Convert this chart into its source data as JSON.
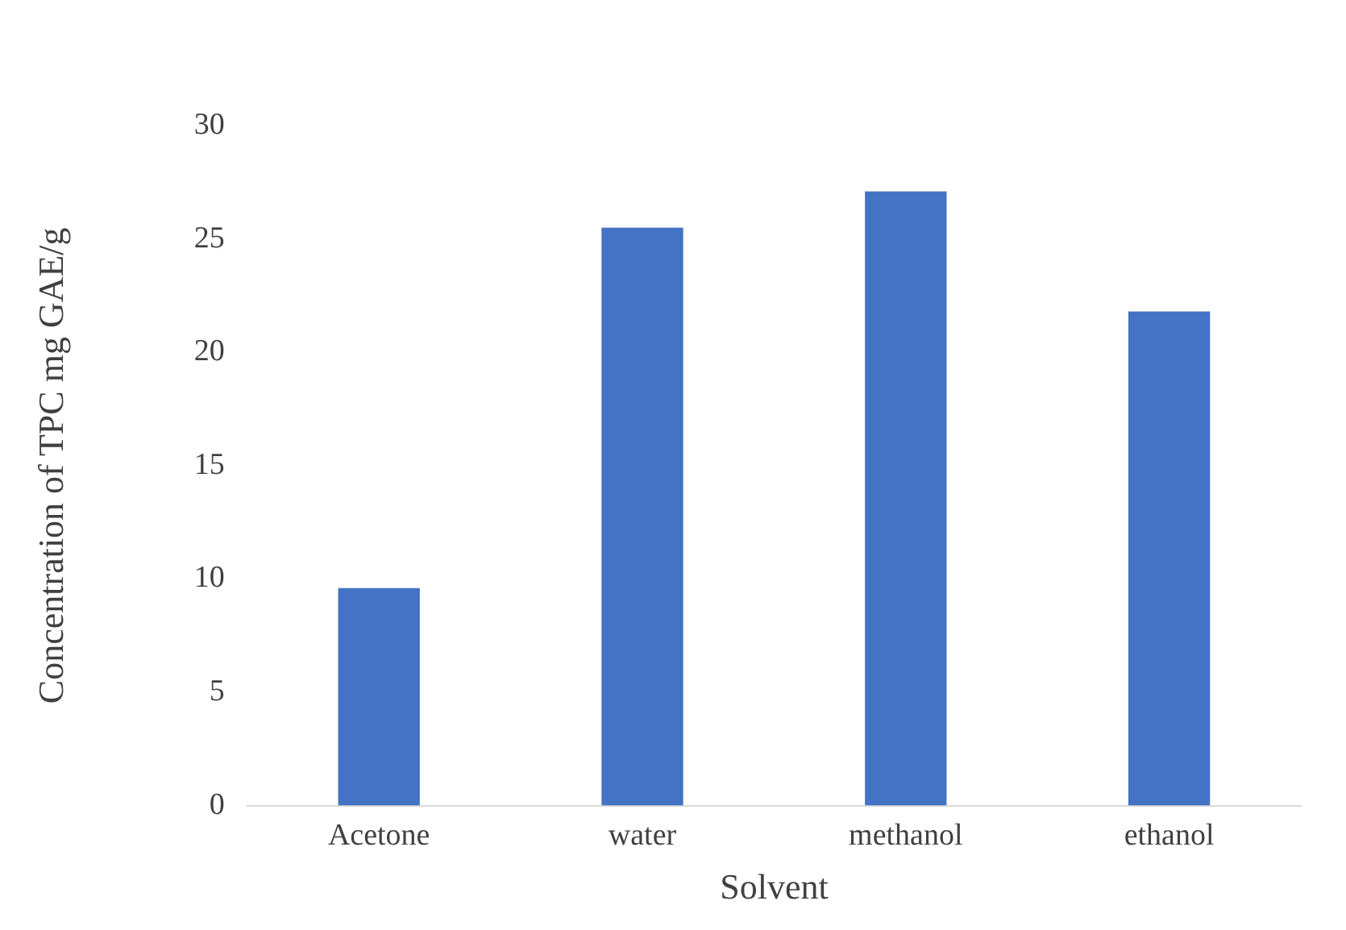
{
  "chart_data": {
    "type": "bar",
    "xlabel": "Solvent",
    "ylabel": "Concentration of TPC mg GAE/g",
    "categories": [
      "Acetone",
      "water",
      "methanol",
      "ethanol"
    ],
    "values": [
      9.6,
      25.5,
      27.1,
      21.8
    ],
    "color": "#4472c4",
    "ylim": [
      0,
      30
    ],
    "yticks": [
      0,
      5,
      10,
      15,
      20,
      25,
      30
    ],
    "grid": false,
    "legend": false
  }
}
